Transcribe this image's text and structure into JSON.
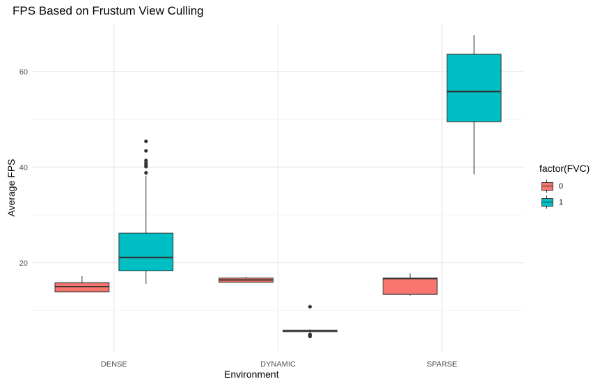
{
  "chart_data": {
    "type": "boxplot",
    "title": "FPS Based on Frustum View Culling",
    "xlabel": "Environment",
    "ylabel": "Average FPS",
    "categories": [
      "DENSE",
      "DYNAMIC",
      "SPARSE"
    ],
    "ylim": [
      1.5,
      70
    ],
    "yticks": [
      20,
      40,
      60
    ],
    "grid": true,
    "legend": {
      "title": "factor(FVC)",
      "position": "right",
      "items": [
        {
          "label": "0",
          "color": "#F8766D"
        },
        {
          "label": "1",
          "color": "#00BFC4"
        }
      ]
    },
    "series": [
      {
        "name": "0",
        "color": "#F8766D",
        "boxes": [
          {
            "category": "DENSE",
            "min": 13.8,
            "q1": 13.9,
            "median": 15.0,
            "q3": 15.8,
            "max": 17.2,
            "outliers": []
          },
          {
            "category": "DYNAMIC",
            "min": 15.9,
            "q1": 15.9,
            "median": 16.4,
            "q3": 16.8,
            "max": 17.1,
            "outliers": []
          },
          {
            "category": "SPARSE",
            "min": 13.1,
            "q1": 13.4,
            "median": 16.7,
            "q3": 16.8,
            "max": 17.8,
            "outliers": []
          }
        ]
      },
      {
        "name": "1",
        "color": "#00BFC4",
        "boxes": [
          {
            "category": "DENSE",
            "min": 15.6,
            "q1": 18.3,
            "median": 21.1,
            "q3": 26.2,
            "max": 38.2,
            "outliers": [
              38.8,
              40.1,
              40.5,
              40.9,
              41.4,
              43.4,
              45.4
            ]
          },
          {
            "category": "DYNAMIC",
            "min": 5.4,
            "q1": 5.6,
            "median": 5.7,
            "q3": 5.9,
            "max": 6.1,
            "outliers": [
              4.6,
              4.8,
              5.0,
              10.8
            ]
          },
          {
            "category": "SPARSE",
            "min": 38.5,
            "q1": 49.5,
            "median": 55.8,
            "q3": 63.6,
            "max": 67.6,
            "outliers": []
          }
        ]
      }
    ]
  }
}
